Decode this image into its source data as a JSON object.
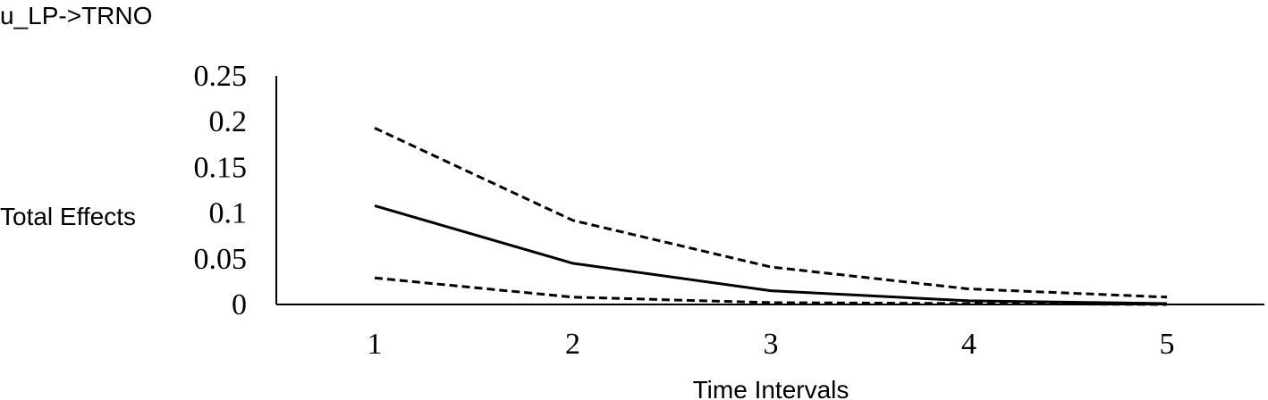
{
  "chart_data": {
    "type": "line",
    "title": "u_LP->TRNO",
    "xlabel": "Time Intervals",
    "ylabel": "Total Effects",
    "categories": [
      "1",
      "2",
      "3",
      "4",
      "5"
    ],
    "yticks": [
      "0",
      "0.05",
      "0.1",
      "0.15",
      "0.2",
      "0.25"
    ],
    "ylim": [
      0,
      0.25
    ],
    "grid": false,
    "legend": "none",
    "series": [
      {
        "style": "dashed",
        "values": [
          0.193,
          0.092,
          0.041,
          0.017,
          0.008
        ]
      },
      {
        "style": "solid",
        "values": [
          0.108,
          0.045,
          0.015,
          0.004,
          0.001
        ]
      },
      {
        "style": "dashed",
        "values": [
          0.029,
          0.008,
          0.002,
          0.001,
          0.0
        ]
      }
    ]
  }
}
